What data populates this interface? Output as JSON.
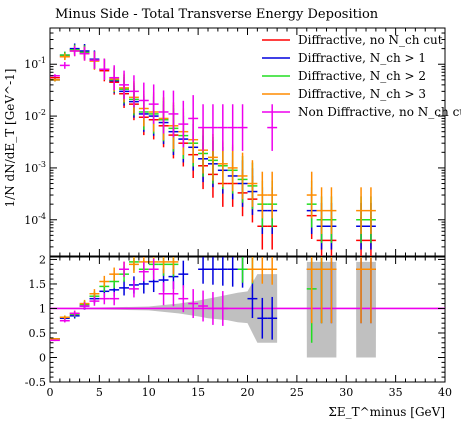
{
  "chart_data": [
    {
      "type": "line",
      "panel": "main",
      "title": "Minus Side - Total Transverse Energy Deposition",
      "ylabel": "1/N dN/dE_T [GeV^-1]",
      "yscale": "log",
      "ylim": [
        2e-05,
        0.5
      ],
      "xlim": [
        0,
        40
      ],
      "y_ticks": [
        "10^-1",
        "10^-2",
        "10^-3",
        "10^-4"
      ],
      "legend_position": "top-right",
      "series": [
        {
          "name": "Diffractive, no N_ch cut",
          "color": "#ff0000",
          "points": [
            [
              0.5,
              0.055
            ],
            [
              1.5,
              0.14
            ],
            [
              2.5,
              0.19
            ],
            [
              3.5,
              0.175
            ],
            [
              4.5,
              0.12
            ],
            [
              5.5,
              0.075
            ],
            [
              6.5,
              0.045
            ],
            [
              7.5,
              0.027
            ],
            [
              8.5,
              0.017
            ],
            [
              9.5,
              0.0095
            ],
            [
              10.5,
              0.0085
            ],
            [
              11.5,
              0.0065
            ],
            [
              12.5,
              0.0043
            ],
            [
              13.5,
              0.003
            ],
            [
              14.5,
              0.0018
            ],
            [
              15.5,
              0.0011
            ],
            [
              16.5,
              0.00075
            ],
            [
              17.5,
              0.0005
            ],
            [
              18.5,
              0.0005
            ],
            [
              19.5,
              0.00033
            ],
            [
              20.5,
              0.00025
            ],
            [
              21.5,
              7.5e-05
            ],
            [
              22.5,
              7.5e-05
            ],
            [
              26.5,
              0.00012
            ],
            [
              27.5,
              4e-05
            ],
            [
              28.5,
              4e-05
            ],
            [
              31.5,
              4e-05
            ],
            [
              32.5,
              4e-05
            ]
          ]
        },
        {
          "name": "Diffractive, N_ch > 1",
          "color": "#0000dd",
          "points": [
            [
              0.5,
              0.05
            ],
            [
              1.5,
              0.15
            ],
            [
              2.5,
              0.2
            ],
            [
              3.5,
              0.18
            ],
            [
              4.5,
              0.125
            ],
            [
              5.5,
              0.08
            ],
            [
              6.5,
              0.048
            ],
            [
              7.5,
              0.03
            ],
            [
              8.5,
              0.019
            ],
            [
              9.5,
              0.011
            ],
            [
              10.5,
              0.01
            ],
            [
              11.5,
              0.0075
            ],
            [
              12.5,
              0.005
            ],
            [
              13.5,
              0.0036
            ],
            [
              14.5,
              0.0025
            ],
            [
              15.5,
              0.0015
            ],
            [
              16.5,
              0.0012
            ],
            [
              17.5,
              0.0009
            ],
            [
              18.5,
              0.0007
            ],
            [
              19.5,
              0.0005
            ],
            [
              20.5,
              0.00035
            ],
            [
              21.5,
              0.00015
            ],
            [
              22.5,
              0.00015
            ],
            [
              26.5,
              0.00015
            ],
            [
              27.5,
              7.5e-05
            ],
            [
              28.5,
              7.5e-05
            ],
            [
              31.5,
              7.5e-05
            ],
            [
              32.5,
              7.5e-05
            ]
          ]
        },
        {
          "name": "Diffractive, N_ch > 2",
          "color": "#22dd22",
          "points": [
            [
              0.5,
              0.05
            ],
            [
              1.5,
              0.15
            ],
            [
              2.5,
              0.19
            ],
            [
              3.5,
              0.17
            ],
            [
              4.5,
              0.12
            ],
            [
              5.5,
              0.08
            ],
            [
              6.5,
              0.05
            ],
            [
              7.5,
              0.033
            ],
            [
              8.5,
              0.021
            ],
            [
              9.5,
              0.012
            ],
            [
              10.5,
              0.011
            ],
            [
              11.5,
              0.0085
            ],
            [
              12.5,
              0.0058
            ],
            [
              13.5,
              0.0042
            ],
            [
              14.5,
              0.003
            ],
            [
              15.5,
              0.0019
            ],
            [
              16.5,
              0.0014
            ],
            [
              17.5,
              0.0011
            ],
            [
              18.5,
              0.0009
            ],
            [
              19.5,
              0.0006
            ],
            [
              20.5,
              0.00045
            ],
            [
              21.5,
              0.0002
            ],
            [
              22.5,
              0.0002
            ],
            [
              26.5,
              0.0002
            ],
            [
              27.5,
              0.0001
            ],
            [
              28.5,
              0.0001
            ],
            [
              31.5,
              0.0001
            ],
            [
              32.5,
              0.0001
            ]
          ]
        },
        {
          "name": "Diffractive, N_ch > 3",
          "color": "#ff8c00",
          "points": [
            [
              0.5,
              0.05
            ],
            [
              1.5,
              0.14
            ],
            [
              2.5,
              0.18
            ],
            [
              3.5,
              0.16
            ],
            [
              4.5,
              0.115
            ],
            [
              5.5,
              0.08
            ],
            [
              6.5,
              0.052
            ],
            [
              7.5,
              0.035
            ],
            [
              8.5,
              0.023
            ],
            [
              9.5,
              0.014
            ],
            [
              10.5,
              0.012
            ],
            [
              11.5,
              0.009
            ],
            [
              12.5,
              0.0065
            ],
            [
              13.5,
              0.005
            ],
            [
              14.5,
              0.0035
            ],
            [
              15.5,
              0.0022
            ],
            [
              16.5,
              0.0016
            ],
            [
              17.5,
              0.0012
            ],
            [
              18.5,
              0.001
            ],
            [
              19.5,
              0.0007
            ],
            [
              20.5,
              0.0005
            ],
            [
              21.5,
              0.0003
            ],
            [
              22.5,
              0.0003
            ],
            [
              26.5,
              0.0003
            ],
            [
              27.5,
              0.00015
            ],
            [
              28.5,
              0.00015
            ],
            [
              31.5,
              0.00015
            ],
            [
              32.5,
              0.00015
            ]
          ]
        },
        {
          "name": "Non Diffractive, no N_ch cut",
          "color": "#ee00ee",
          "points": [
            [
              0.5,
              0.06
            ],
            [
              1.5,
              0.095
            ],
            [
              2.5,
              0.18
            ],
            [
              3.5,
              0.16
            ],
            [
              4.5,
              0.12
            ],
            [
              5.5,
              0.08
            ],
            [
              6.5,
              0.055
            ],
            [
              7.5,
              0.04
            ],
            [
              8.5,
              0.03
            ],
            [
              9.5,
              0.02
            ],
            [
              10.5,
              0.017
            ],
            [
              11.5,
              0.012
            ],
            [
              12.5,
              0.011
            ],
            [
              13.5,
              0.007
            ],
            [
              14.5,
              0.009
            ],
            [
              15.5,
              0.006
            ],
            [
              16.5,
              0.006
            ],
            [
              17.5,
              0.006
            ],
            [
              18.5,
              0.006
            ],
            [
              19.5,
              0.006
            ],
            [
              22.5,
              0.006
            ]
          ]
        }
      ]
    },
    {
      "type": "line",
      "panel": "ratio",
      "xlabel": "ΣE_T^minus [GeV]",
      "xlim": [
        0,
        40
      ],
      "ylim": [
        -0.5,
        2.05
      ],
      "x_ticks": [
        "0",
        "5",
        "10",
        "15",
        "20",
        "25",
        "30",
        "35",
        "40"
      ],
      "y_ticks": [
        "2",
        "1.5",
        "1",
        "0.5",
        "0",
        "-0.5"
      ],
      "reference_line": 1,
      "uncertainty_band": [
        [
          0,
          0.99,
          1.0
        ],
        [
          5,
          0.98,
          1.02
        ],
        [
          10,
          0.96,
          1.04
        ],
        [
          11,
          0.94,
          1.06
        ],
        [
          12,
          0.92,
          1.08
        ],
        [
          13,
          0.9,
          1.1
        ],
        [
          14,
          0.87,
          1.13
        ],
        [
          15,
          0.84,
          1.16
        ],
        [
          16,
          0.8,
          1.2
        ],
        [
          17,
          0.78,
          1.24
        ],
        [
          18,
          0.76,
          1.28
        ],
        [
          19,
          0.72,
          1.32
        ],
        [
          20,
          0.7,
          1.35
        ],
        [
          21,
          0.3,
          1.7
        ],
        [
          22,
          0.3,
          1.7
        ],
        [
          23,
          0.3,
          1.7
        ],
        [
          23.01,
          1.0,
          1.0
        ],
        [
          26,
          1.0,
          1.0
        ],
        [
          26.01,
          0.0,
          1.95
        ],
        [
          29,
          0.0,
          1.95
        ],
        [
          29.01,
          1.0,
          1.0
        ],
        [
          31,
          1.0,
          1.0
        ],
        [
          31.01,
          0.0,
          1.95
        ],
        [
          33,
          0.0,
          1.95
        ],
        [
          33.01,
          1.0,
          1.0
        ],
        [
          40,
          1.0,
          1.0
        ]
      ],
      "series": [
        {
          "name": "Diffractive, N_ch > 1",
          "color": "#0000dd",
          "points": [
            [
              0.5,
              0.38
            ],
            [
              1.5,
              0.8
            ],
            [
              2.5,
              0.85
            ],
            [
              3.5,
              1.05
            ],
            [
              4.5,
              1.2
            ],
            [
              5.5,
              1.35
            ],
            [
              6.5,
              1.38
            ],
            [
              7.5,
              1.42
            ],
            [
              8.5,
              1.48
            ],
            [
              9.5,
              1.5
            ],
            [
              10.5,
              1.55
            ],
            [
              11.5,
              1.58
            ],
            [
              12.5,
              1.65
            ],
            [
              13.5,
              1.7
            ],
            [
              15.5,
              1.8
            ],
            [
              16.5,
              1.8
            ],
            [
              17.5,
              1.8
            ],
            [
              18.5,
              1.8
            ],
            [
              19.5,
              1.8
            ],
            [
              20.5,
              1.2
            ],
            [
              21.5,
              0.8
            ],
            [
              22.5,
              0.8
            ],
            [
              26.5,
              1.8
            ],
            [
              27.5,
              1.8
            ],
            [
              28.5,
              1.8
            ],
            [
              31.5,
              1.8
            ],
            [
              32.5,
              1.8
            ]
          ]
        },
        {
          "name": "Diffractive, N_ch > 2",
          "color": "#22dd22",
          "points": [
            [
              0.5,
              0.38
            ],
            [
              1.5,
              0.82
            ],
            [
              2.5,
              0.88
            ],
            [
              3.5,
              1.08
            ],
            [
              4.5,
              1.25
            ],
            [
              5.5,
              1.45
            ],
            [
              6.5,
              1.55
            ],
            [
              7.5,
              1.7
            ],
            [
              8.5,
              1.95
            ],
            [
              9.5,
              1.8
            ],
            [
              10.5,
              1.9
            ],
            [
              11.5,
              1.9
            ],
            [
              12.5,
              1.9
            ],
            [
              19.5,
              1.8
            ],
            [
              20.5,
              1.8
            ],
            [
              26.5,
              1.4
            ],
            [
              27.5,
              1.8
            ]
          ]
        },
        {
          "name": "Diffractive, N_ch > 3",
          "color": "#ff8c00",
          "points": [
            [
              0.5,
              0.38
            ],
            [
              1.5,
              0.82
            ],
            [
              2.5,
              0.9
            ],
            [
              3.5,
              1.1
            ],
            [
              4.5,
              1.3
            ],
            [
              5.5,
              1.55
            ],
            [
              6.5,
              1.7
            ],
            [
              7.5,
              1.8
            ],
            [
              8.5,
              1.9
            ],
            [
              9.5,
              1.95
            ],
            [
              10.5,
              1.95
            ],
            [
              11.5,
              1.95
            ],
            [
              12.5,
              1.95
            ],
            [
              20.5,
              1.8
            ],
            [
              21.5,
              1.8
            ],
            [
              22.5,
              1.8
            ],
            [
              26.5,
              1.8
            ],
            [
              27.5,
              1.8
            ],
            [
              28.5,
              1.8
            ],
            [
              31.5,
              1.8
            ],
            [
              32.5,
              1.8
            ]
          ]
        },
        {
          "name": "Non Diffractive, no N_ch cut",
          "color": "#ee00ee",
          "points": [
            [
              0.5,
              0.35
            ],
            [
              1.5,
              0.75
            ],
            [
              2.5,
              0.9
            ],
            [
              3.5,
              1.05
            ],
            [
              4.5,
              1.15
            ],
            [
              5.5,
              1.2
            ],
            [
              6.5,
              1.2
            ],
            [
              7.5,
              1.8
            ],
            [
              8.5,
              1.4
            ],
            [
              9.5,
              1.75
            ],
            [
              10.5,
              1.8
            ],
            [
              11.5,
              1.3
            ],
            [
              12.5,
              1.3
            ],
            [
              13.5,
              1.2
            ],
            [
              14.5,
              1.1
            ],
            [
              15.5,
              1.05
            ],
            [
              16.5,
              1.0
            ],
            [
              17.5,
              1.0
            ]
          ]
        }
      ]
    }
  ]
}
